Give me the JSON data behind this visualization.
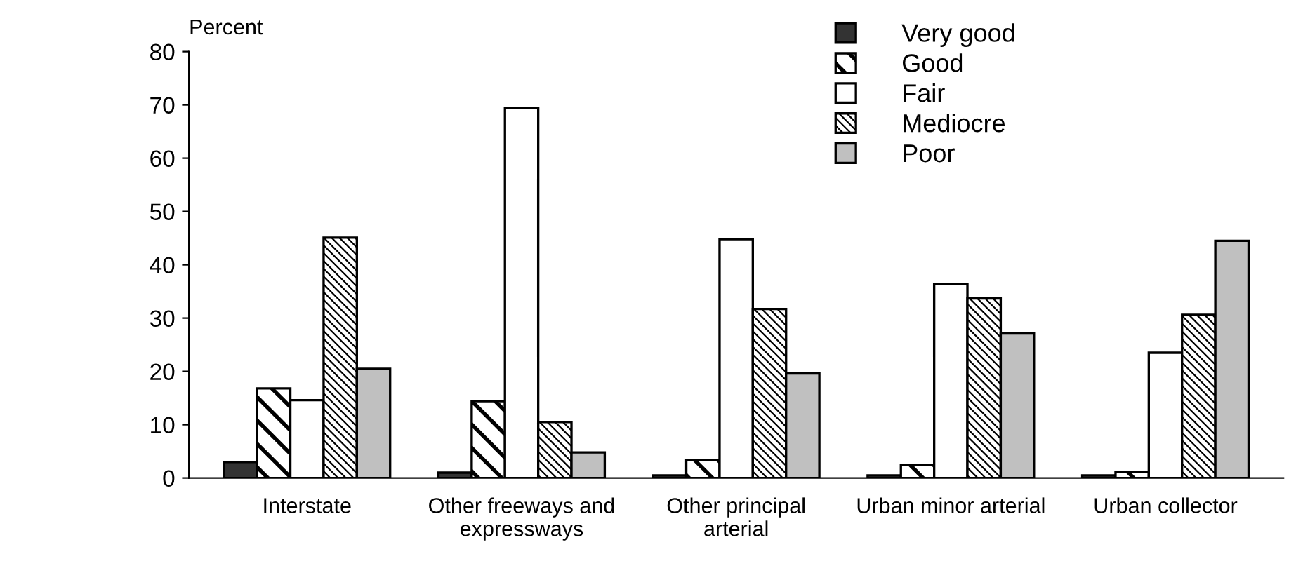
{
  "chart_data": {
    "type": "bar",
    "ylabel": "Percent",
    "categories": [
      "Interstate",
      "Other freeways and\nexpressways",
      "Other principal\narterial",
      "Urban minor arterial",
      "Urban collector"
    ],
    "series": [
      {
        "name": "Very good",
        "color": "#333333",
        "values": [
          3.0,
          1.0,
          0.5,
          0.5,
          0.5
        ]
      },
      {
        "name": "Good",
        "color": "#000000",
        "values": [
          16.8,
          14.4,
          3.4,
          2.4,
          1.1
        ]
      },
      {
        "name": "Fair",
        "color": "#ffffff",
        "values": [
          14.6,
          69.4,
          44.8,
          36.4,
          23.5
        ]
      },
      {
        "name": "Mediocre",
        "color": "#000000",
        "values": [
          45.1,
          10.5,
          31.7,
          33.7,
          30.6
        ]
      },
      {
        "name": "Poor",
        "color": "#c0c0c0",
        "values": [
          20.5,
          4.8,
          19.6,
          27.1,
          44.5
        ]
      }
    ],
    "ylim": [
      0,
      80
    ],
    "yticks": [
      0,
      10,
      20,
      30,
      40,
      50,
      60,
      70,
      80
    ],
    "grid": false,
    "legend": "top right"
  }
}
